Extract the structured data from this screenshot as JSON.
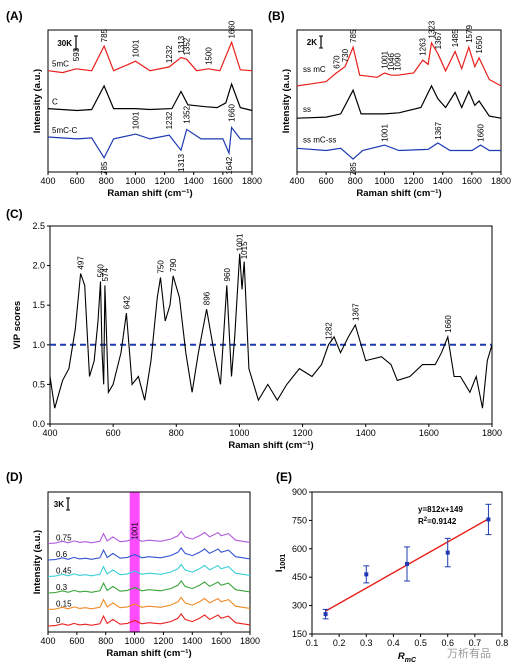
{
  "watermark": "万析有品",
  "chart_data": [
    {
      "panel": "(A)",
      "type": "line",
      "xlabel": "Raman shift (cm⁻¹)",
      "ylabel": "Intensity (a.u.)",
      "xlim": [
        400,
        1800
      ],
      "xticks": [
        400,
        600,
        800,
        1000,
        1200,
        1400,
        1600,
        1800
      ],
      "scale_bar": "30K",
      "series": [
        {
          "name": "5mC",
          "color": "#e8201c",
          "points": [
            [
              400,
              0.72
            ],
            [
              500,
              0.7
            ],
            [
              593,
              0.74
            ],
            [
              700,
              0.72
            ],
            [
              785,
              0.98
            ],
            [
              850,
              0.72
            ],
            [
              1001,
              0.82
            ],
            [
              1100,
              0.72
            ],
            [
              1232,
              0.76
            ],
            [
              1313,
              0.86
            ],
            [
              1352,
              0.84
            ],
            [
              1420,
              0.72
            ],
            [
              1500,
              0.74
            ],
            [
              1580,
              0.72
            ],
            [
              1660,
              1.02
            ],
            [
              1720,
              0.73
            ],
            [
              1800,
              0.72
            ]
          ]
        },
        {
          "name": "C",
          "color": "#000000",
          "points": [
            [
              400,
              0.32
            ],
            [
              600,
              0.3
            ],
            [
              700,
              0.31
            ],
            [
              785,
              0.56
            ],
            [
              850,
              0.32
            ],
            [
              1000,
              0.32
            ],
            [
              1100,
              0.31
            ],
            [
              1250,
              0.32
            ],
            [
              1313,
              0.5
            ],
            [
              1360,
              0.36
            ],
            [
              1480,
              0.34
            ],
            [
              1560,
              0.33
            ],
            [
              1620,
              0.38
            ],
            [
              1660,
              0.58
            ],
            [
              1720,
              0.33
            ],
            [
              1800,
              0.3
            ]
          ]
        },
        {
          "name": "5mC-C",
          "color": "#1d3ab2",
          "points": [
            [
              400,
              0.02
            ],
            [
              600,
              0.0
            ],
            [
              700,
              0.01
            ],
            [
              785,
              -0.2
            ],
            [
              850,
              0.0
            ],
            [
              1001,
              0.05
            ],
            [
              1100,
              0.0
            ],
            [
              1232,
              0.04
            ],
            [
              1313,
              -0.12
            ],
            [
              1352,
              0.1
            ],
            [
              1450,
              0.0
            ],
            [
              1600,
              0.0
            ],
            [
              1642,
              -0.15
            ],
            [
              1660,
              0.12
            ],
            [
              1720,
              0.0
            ],
            [
              1800,
              0.0
            ]
          ]
        }
      ],
      "peak_labels": [
        "593",
        "785",
        "1001",
        "1232",
        "1313",
        "1352",
        "1500",
        "1660",
        "1001",
        "1232",
        "1352",
        "1660",
        "785",
        "1313",
        "1642"
      ]
    },
    {
      "panel": "(B)",
      "type": "line",
      "xlabel": "Raman shift (cm⁻¹)",
      "ylabel": "Intensity (a.u.)",
      "xlim": [
        400,
        1800
      ],
      "xticks": [
        400,
        600,
        800,
        1000,
        1200,
        1400,
        1600,
        1800
      ],
      "scale_bar": "2K",
      "series": [
        {
          "name": "ss mC",
          "color": "#e8201c",
          "points": [
            [
              400,
              0.6
            ],
            [
              500,
              0.62
            ],
            [
              600,
              0.64
            ],
            [
              670,
              0.72
            ],
            [
              730,
              0.78
            ],
            [
              785,
              0.96
            ],
            [
              830,
              0.7
            ],
            [
              950,
              0.68
            ],
            [
              1001,
              0.72
            ],
            [
              1046,
              0.7
            ],
            [
              1090,
              0.7
            ],
            [
              1200,
              0.72
            ],
            [
              1263,
              0.84
            ],
            [
              1300,
              0.8
            ],
            [
              1323,
              1.0
            ],
            [
              1367,
              0.9
            ],
            [
              1420,
              0.74
            ],
            [
              1485,
              0.92
            ],
            [
              1530,
              0.76
            ],
            [
              1579,
              0.96
            ],
            [
              1620,
              0.78
            ],
            [
              1650,
              0.86
            ],
            [
              1720,
              0.66
            ],
            [
              1800,
              0.6
            ]
          ]
        },
        {
          "name": "ss",
          "color": "#000000",
          "points": [
            [
              400,
              0.3
            ],
            [
              600,
              0.31
            ],
            [
              700,
              0.34
            ],
            [
              785,
              0.56
            ],
            [
              840,
              0.34
            ],
            [
              1000,
              0.34
            ],
            [
              1100,
              0.35
            ],
            [
              1250,
              0.4
            ],
            [
              1323,
              0.6
            ],
            [
              1367,
              0.48
            ],
            [
              1420,
              0.4
            ],
            [
              1485,
              0.54
            ],
            [
              1530,
              0.4
            ],
            [
              1579,
              0.55
            ],
            [
              1620,
              0.42
            ],
            [
              1650,
              0.46
            ],
            [
              1720,
              0.32
            ],
            [
              1800,
              0.3
            ]
          ]
        },
        {
          "name": "ss mC-ss",
          "color": "#1d3ab2",
          "points": [
            [
              400,
              0.02
            ],
            [
              600,
              0.0
            ],
            [
              700,
              0.02
            ],
            [
              785,
              -0.08
            ],
            [
              850,
              0.0
            ],
            [
              1001,
              0.05
            ],
            [
              1100,
              0.0
            ],
            [
              1300,
              0.01
            ],
            [
              1367,
              0.07
            ],
            [
              1450,
              0.0
            ],
            [
              1600,
              0.0
            ],
            [
              1660,
              0.05
            ],
            [
              1720,
              0.0
            ],
            [
              1800,
              0.0
            ]
          ]
        }
      ],
      "peak_labels": [
        "670",
        "730",
        "785",
        "1001",
        "1046",
        "1090",
        "1263",
        "1323",
        "1367",
        "1485",
        "1579",
        "1650",
        "1001",
        "1367",
        "1660",
        "785"
      ]
    },
    {
      "panel": "(C)",
      "type": "line",
      "xlabel": "Raman shift (cm⁻¹)",
      "ylabel": "VIP scores",
      "xlim": [
        400,
        1800
      ],
      "ylim": [
        0,
        2.5
      ],
      "xticks": [
        400,
        600,
        800,
        1000,
        1200,
        1400,
        1600,
        1800
      ],
      "yticks": [
        0.0,
        0.5,
        1.0,
        1.5,
        2.0,
        2.5
      ],
      "threshold": 1.0,
      "series": [
        {
          "name": "",
          "color": "#000000",
          "points": [
            [
              400,
              0.6
            ],
            [
              415,
              0.2
            ],
            [
              440,
              0.55
            ],
            [
              460,
              0.7
            ],
            [
              480,
              1.2
            ],
            [
              497,
              1.9
            ],
            [
              510,
              1.75
            ],
            [
              525,
              0.6
            ],
            [
              540,
              0.8
            ],
            [
              552,
              1.3
            ],
            [
              560,
              1.8
            ],
            [
              565,
              0.9
            ],
            [
              570,
              0.5
            ],
            [
              574,
              1.75
            ],
            [
              585,
              0.4
            ],
            [
              600,
              0.5
            ],
            [
              625,
              0.9
            ],
            [
              642,
              1.4
            ],
            [
              660,
              0.5
            ],
            [
              680,
              0.6
            ],
            [
              700,
              0.3
            ],
            [
              720,
              0.8
            ],
            [
              740,
              1.6
            ],
            [
              750,
              1.85
            ],
            [
              765,
              1.3
            ],
            [
              780,
              1.5
            ],
            [
              790,
              1.87
            ],
            [
              810,
              1.6
            ],
            [
              830,
              0.9
            ],
            [
              850,
              0.4
            ],
            [
              870,
              0.9
            ],
            [
              896,
              1.45
            ],
            [
              920,
              0.9
            ],
            [
              940,
              0.5
            ],
            [
              960,
              1.75
            ],
            [
              975,
              0.6
            ],
            [
              985,
              1.1
            ],
            [
              1001,
              2.15
            ],
            [
              1008,
              1.7
            ],
            [
              1015,
              2.05
            ],
            [
              1030,
              0.7
            ],
            [
              1060,
              0.3
            ],
            [
              1090,
              0.5
            ],
            [
              1120,
              0.3
            ],
            [
              1150,
              0.5
            ],
            [
              1190,
              0.7
            ],
            [
              1230,
              0.6
            ],
            [
              1260,
              0.75
            ],
            [
              1282,
              1.0
            ],
            [
              1300,
              1.1
            ],
            [
              1320,
              0.9
            ],
            [
              1345,
              1.1
            ],
            [
              1367,
              1.25
            ],
            [
              1400,
              0.8
            ],
            [
              1450,
              0.85
            ],
            [
              1480,
              0.75
            ],
            [
              1500,
              0.55
            ],
            [
              1540,
              0.6
            ],
            [
              1580,
              0.75
            ],
            [
              1620,
              0.75
            ],
            [
              1640,
              0.9
            ],
            [
              1660,
              1.1
            ],
            [
              1680,
              0.6
            ],
            [
              1700,
              0.6
            ],
            [
              1730,
              0.4
            ],
            [
              1750,
              0.6
            ],
            [
              1770,
              0.2
            ],
            [
              1785,
              0.8
            ],
            [
              1800,
              1.0
            ]
          ]
        }
      ],
      "peak_labels": [
        "497",
        "560",
        "574",
        "642",
        "750",
        "790",
        "896",
        "960",
        "1001",
        "1015",
        "1282",
        "1367",
        "1660"
      ]
    },
    {
      "panel": "(D)",
      "type": "line",
      "xlabel": "Raman shift (cm⁻¹)",
      "ylabel": "Intensity (a.u.)",
      "xlim": [
        400,
        1800
      ],
      "xticks": [
        400,
        600,
        800,
        1000,
        1200,
        1400,
        1600,
        1800
      ],
      "scale_bar": "3K",
      "highlight": {
        "label": "1001",
        "center": 1001,
        "color": "#ff00ff"
      },
      "series_names": [
        "0.75",
        "0.6",
        "0.45",
        "0.3",
        "0.15",
        "0"
      ],
      "series_colors": [
        "#b05adb",
        "#3454d1",
        "#38cfd6",
        "#3aa53a",
        "#f08a26",
        "#e8201c"
      ]
    },
    {
      "panel": "(E)",
      "type": "scatter",
      "xlabel": "R",
      "xlabel_sub": "mC",
      "ylabel": "I",
      "ylabel_sub": "1001",
      "xlim": [
        0.1,
        0.8
      ],
      "ylim": [
        150,
        900
      ],
      "xticks": [
        "0.1",
        "0.2",
        "0.3",
        "0.4",
        "0.5",
        "0.6",
        "0.7",
        "0.8"
      ],
      "yticks": [
        "150",
        "300",
        "450",
        "600",
        "750",
        "900"
      ],
      "points": [
        {
          "x": 0.15,
          "y": 255,
          "err": 25
        },
        {
          "x": 0.3,
          "y": 465,
          "err": 45
        },
        {
          "x": 0.45,
          "y": 520,
          "err": 90
        },
        {
          "x": 0.6,
          "y": 580,
          "err": 75
        },
        {
          "x": 0.75,
          "y": 755,
          "err": 80
        }
      ],
      "fit": {
        "slope": 812,
        "intercept": 149,
        "color": "#e8201c"
      },
      "equation": "y=812x+149",
      "r2_prefix": "R",
      "r2_sup": "2",
      "r2_value": "=0.9142"
    }
  ]
}
